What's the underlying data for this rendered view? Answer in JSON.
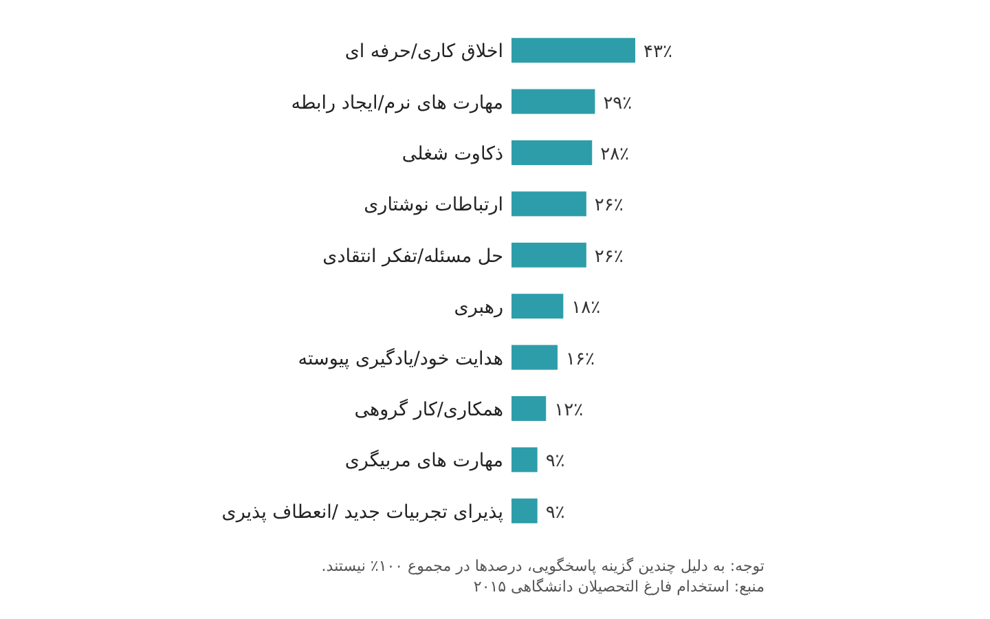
{
  "chart_data": {
    "type": "bar",
    "orientation": "horizontal",
    "color": "#2e9daa",
    "categories": [
      "اخلاق کاری/حرفه ای",
      "مهارت های نرم/ایجاد رابطه",
      "ذکاوت شغلی",
      "ارتباطات نوشتاری",
      "حل مسئله/تفکر انتقادی",
      "رهبری",
      "هدایت خود/یادگیری پیوسته",
      "همکاری/کار گروهی",
      "مهارت های مربیگری",
      "پذیرای تجربیات جدید /انعطاف پذیری"
    ],
    "values": [
      43,
      29,
      28,
      26,
      26,
      18,
      16,
      12,
      9,
      9
    ],
    "value_labels": [
      "۴۳٪",
      "۲۹٪",
      "۲۸٪",
      "۲۶٪",
      "۲۶٪",
      "۱۸٪",
      "۱۶٪",
      "۱۲٪",
      "۹٪",
      "۹٪"
    ],
    "annotations": [
      "توجه: به دلیل چندین گزینه پاسخگویی، درصدها در مجموع ۱۰۰٪ نیستند.",
      "منبع: استخدام فارغ التحصیلان دانشگاهی ۲۰۱۵"
    ]
  }
}
